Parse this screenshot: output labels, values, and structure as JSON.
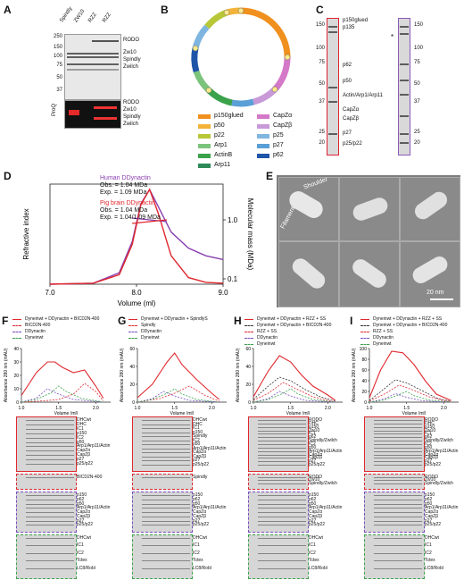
{
  "panels": {
    "A": {
      "letter": "A",
      "lanes": [
        "Spindly",
        "ZW10",
        "RZZ",
        "RZZ"
      ],
      "lane_superscripts": [
        "S",
        "",
        "",
        " "
      ],
      "markers": [
        "250",
        "150",
        "100",
        "75",
        "50",
        "37"
      ],
      "bands_right": [
        "RODO",
        "Zw10",
        "Spindly",
        "Zwilch"
      ],
      "prod_label": "ProQ",
      "bands_right_low": [
        "RODO",
        "Zw10",
        "Spindly",
        "Zwilch"
      ]
    },
    "B": {
      "letter": "B",
      "legend": [
        {
          "label": "p150glued",
          "color": "#f0901e"
        },
        {
          "label": "CapZα",
          "color": "#d478c8"
        },
        {
          "label": "p50",
          "color": "#f2b338"
        },
        {
          "label": "CapZβ",
          "color": "#c89ad8"
        },
        {
          "label": "p22",
          "color": "#b8c738"
        },
        {
          "label": "p25",
          "color": "#7fb6e0"
        },
        {
          "label": "Arp1",
          "color": "#7cc47c"
        },
        {
          "label": "p27",
          "color": "#5a9fd6"
        },
        {
          "label": "ActinB",
          "color": "#3aa24a"
        },
        {
          "label": "p62",
          "color": "#1f55a8"
        },
        {
          "label": "Arp11",
          "color": "#2f8a5a"
        }
      ]
    },
    "C": {
      "letter": "C",
      "markers_left": [
        "150",
        "100",
        "75",
        "50",
        "37",
        "25",
        "20"
      ],
      "markers_right": [
        "150",
        "100",
        "75",
        "50",
        "37",
        "25",
        "20"
      ],
      "bands": [
        "p150glued",
        "p135",
        "p62",
        "p50",
        "Actin/Arp1/Arp11",
        "CapZα",
        "CapZβ",
        "p27",
        "p25/p22"
      ],
      "star": "*"
    },
    "D": {
      "letter": "D",
      "human_title": "Human DDynactin",
      "human_obs": "Obs. = 1.04 MDa",
      "human_exp": "Exp. = 1.09 MDa",
      "pig_title": "Pig brain DDynactin",
      "pig_obs": "Obs. = 1.04 MDa",
      "pig_exp": "Exp. = 1.04/1.09 MDa",
      "ylabel": "Refractive index",
      "y2label": "Molecular mass (MDa)",
      "xlabel": "Volume (ml)",
      "xticks": [
        "7.0",
        "8.0",
        "9.0"
      ],
      "y2ticks": [
        "1.0",
        "0.1"
      ]
    },
    "E": {
      "letter": "E",
      "shoulder": "Shoulder",
      "filament": "Filament",
      "scale": "20 nm"
    },
    "F": {
      "letter": "F",
      "legend": [
        "Dyneinwt + DDynactin + BICD2N-400",
        "BICD2N-400",
        "DDynactin",
        "Dyneinwt"
      ],
      "ylabel": "Absorbance 280 nm (mAU)",
      "xlabel": "Volume (ml)",
      "yticks": [
        "40",
        "30",
        "20",
        "10",
        "0"
      ],
      "xticks": [
        "1.0",
        "1.5",
        "2.0"
      ],
      "gel_top": [
        "DHCwt",
        "DHC",
        "IC1",
        "p150",
        "IC2",
        "p50",
        "Arp1/Arp11/Actin",
        "CapZα",
        "CapZβ",
        "p27",
        "p25/p22"
      ],
      "gel_mid": [
        "BICD2N-400"
      ],
      "gel_low": [
        "p150",
        "p62",
        "p50",
        "Arp1/Arp11/Actin",
        "CapZα",
        "CapZβ",
        "p27",
        "p25/p22"
      ],
      "gel_bot": [
        "DHCwt",
        "IC1",
        "IC2",
        "Tctex",
        "LC8/Robl"
      ]
    },
    "G": {
      "letter": "G",
      "legend": [
        "Dyneinwt + DDynactin + SpindlyS",
        "Spindly",
        "DDynactin",
        "Dyneinwt"
      ],
      "ylabel": "Absorbance 280 nm (mAU)",
      "xlabel": "Volume (ml)",
      "yticks": [
        "60",
        "40",
        "20",
        "0"
      ],
      "xticks": [
        "1.0",
        "1.5",
        "2.0"
      ],
      "gel_top": [
        "DHCwt",
        "DHC",
        "IC1",
        "p150",
        "Spindly",
        "IC2",
        "p50",
        "Arp1/Arp11/Actin",
        "CapZα",
        "CapZβ",
        "p27",
        "p25/p22"
      ],
      "gel_mid": [
        "Spindly"
      ],
      "gel_low": [
        "p150",
        "p62",
        "p50",
        "Arp1/Arp11/Actin",
        "CapZα",
        "CapZβ",
        "p27",
        "p25/p22"
      ],
      "gel_bot": [
        "DHCwt",
        "IC1",
        "IC2",
        "Tctex",
        "LC8/Robl"
      ]
    },
    "H": {
      "letter": "H",
      "legend": [
        "Dyneinwt + DDynactin + RZZ + SS",
        "Dyneinwt + DDynactin + BICD2N-400",
        "RZZ + SS",
        "DDynactin",
        "Dyneinwt"
      ],
      "ylabel": "Absorbance 280 nm (mAU)",
      "xlabel": "Volume (ml)",
      "yticks": [
        "60",
        "40",
        "20",
        "0"
      ],
      "xticks": [
        "1.0",
        "1.5",
        "2.0"
      ],
      "gel_top": [
        "RODO",
        "DHC",
        "p150",
        "Zw10",
        "IC1",
        "p62",
        "Spindly/Zwilch",
        "IC2",
        "p50",
        "Arp1/Arp11/Actin",
        "CapZα",
        "CapZβ",
        "p27",
        "p25/p22"
      ],
      "gel_mid": [
        "RODO",
        "Zw10",
        "Spindly/Zwilch"
      ],
      "gel_low": [
        "p150",
        "p62",
        "p50",
        "Arp1/Arp11/Actin",
        "CapZα",
        "CapZβ",
        "p27",
        "p25/p22"
      ],
      "gel_bot": [
        "DHCwt",
        "IC1",
        "IC2",
        "Tctex",
        "LC8/Robl"
      ]
    },
    "I": {
      "letter": "I",
      "legend": [
        "Dyneinwt + DDynactin + RZZ + SS",
        "Dyneinwt + DDynactin + BICD2N-400",
        "RZZ + SS",
        "DDynactin",
        "Dyneinwt"
      ],
      "ylabel": "Absorbance 280 nm (mAU)",
      "xlabel": "Volume (ml)",
      "yticks": [
        "100",
        "80",
        "60",
        "40",
        "20",
        "0"
      ],
      "xticks": [
        "1.0",
        "1.5",
        "2.0"
      ],
      "gel_top": [
        "RODO",
        "DHC",
        "p150",
        "Zw10",
        "IC1",
        "p62",
        "Spindly/Zwilch",
        "IC2",
        "p50",
        "Arp1/Arp11/Actin",
        "CapZα",
        "CapZβ",
        "p27",
        "p25/p22"
      ],
      "gel_mid": [
        "RODO",
        "Zw10",
        "Spindly/Zwilch"
      ],
      "gel_low": [
        "p150",
        "p62",
        "p50",
        "Arp1/Arp11/Actin",
        "CapZα",
        "CapZβ",
        "p27",
        "p25/p22"
      ],
      "gel_bot": [
        "DHCwt",
        "IC1",
        "IC2",
        "Tctex",
        "LC8/Robl"
      ]
    }
  },
  "chart_data": [
    {
      "type": "line",
      "panel": "D",
      "title": "",
      "xlabel": "Volume (ml)",
      "ylabel": "Refractive index",
      "xlim": [
        7.0,
        9.0
      ],
      "series": [
        {
          "name": "Human DDynactin",
          "color": "#8a3fb0",
          "x": [
            7.0,
            7.5,
            7.8,
            7.95,
            8.05,
            8.15,
            8.25,
            8.4,
            8.6,
            8.8,
            9.0
          ],
          "y": [
            0.0,
            0.01,
            0.12,
            0.45,
            0.85,
            1.0,
            0.82,
            0.55,
            0.38,
            0.3,
            0.26
          ]
        },
        {
          "name": "Pig brain DDynactin",
          "color": "#e0282e",
          "x": [
            7.0,
            7.5,
            7.8,
            7.95,
            8.05,
            8.15,
            8.25,
            8.4,
            8.6,
            8.8,
            9.0
          ],
          "y": [
            0.0,
            0.01,
            0.1,
            0.42,
            0.84,
            1.0,
            0.75,
            0.3,
            0.07,
            0.02,
            0.01
          ]
        }
      ]
    },
    {
      "type": "line",
      "panel": "F",
      "xlim": [
        1.0,
        2.2
      ],
      "ylim": [
        0,
        40
      ],
      "series": [
        {
          "name": "Dyneinwt + DDynactin + BICD2N-400",
          "color": "#e0282e",
          "x": [
            1.0,
            1.2,
            1.35,
            1.45,
            1.55,
            1.7,
            1.85,
            2.0,
            2.1
          ],
          "y": [
            5,
            22,
            30,
            30,
            26,
            22,
            24,
            12,
            3
          ]
        },
        {
          "name": "BICD2N-400",
          "color": "#e0282e",
          "x": [
            1.0,
            1.3,
            1.5,
            1.7,
            1.85,
            2.0,
            2.1
          ],
          "y": [
            0,
            1,
            2,
            6,
            14,
            8,
            1
          ]
        },
        {
          "name": "DDynactin",
          "color": "#7a4fc0",
          "x": [
            1.0,
            1.2,
            1.35,
            1.5,
            1.7,
            1.9,
            2.1
          ],
          "y": [
            0,
            3,
            10,
            6,
            2,
            1,
            0
          ]
        },
        {
          "name": "Dyneinwt",
          "color": "#3aa24a",
          "x": [
            1.0,
            1.2,
            1.4,
            1.5,
            1.6,
            1.8,
            2.1
          ],
          "y": [
            0,
            2,
            7,
            12,
            8,
            3,
            0
          ]
        }
      ]
    },
    {
      "type": "line",
      "panel": "G",
      "xlim": [
        1.0,
        2.2
      ],
      "ylim": [
        0,
        60
      ],
      "series": [
        {
          "name": "Dyneinwt + DDynactin + SpindlyS",
          "color": "#e0282e",
          "x": [
            1.0,
            1.2,
            1.4,
            1.5,
            1.6,
            1.8,
            2.0,
            2.1
          ],
          "y": [
            5,
            20,
            45,
            55,
            42,
            25,
            10,
            3
          ]
        },
        {
          "name": "Spindly",
          "color": "#e0282e",
          "x": [
            1.0,
            1.3,
            1.5,
            1.7,
            1.9,
            2.1
          ],
          "y": [
            0,
            4,
            10,
            18,
            8,
            1
          ]
        },
        {
          "name": "DDynactin",
          "color": "#7a4fc0",
          "x": [
            1.0,
            1.2,
            1.35,
            1.5,
            1.7,
            1.9,
            2.1
          ],
          "y": [
            0,
            4,
            12,
            7,
            2,
            1,
            0
          ]
        },
        {
          "name": "Dyneinwt",
          "color": "#3aa24a",
          "x": [
            1.0,
            1.2,
            1.4,
            1.5,
            1.6,
            1.8,
            2.1
          ],
          "y": [
            0,
            3,
            10,
            15,
            9,
            3,
            0
          ]
        }
      ]
    },
    {
      "type": "line",
      "panel": "H",
      "xlim": [
        1.0,
        2.2
      ],
      "ylim": [
        0,
        60
      ],
      "series": [
        {
          "name": "Dyneinwt + DDynactin + RZZ + SS",
          "color": "#e0282e",
          "x": [
            1.0,
            1.2,
            1.35,
            1.5,
            1.65,
            1.8,
            2.0,
            2.1
          ],
          "y": [
            6,
            35,
            52,
            45,
            30,
            18,
            8,
            2
          ]
        },
        {
          "name": "Dyneinwt + DDynactin + BICD2N-400",
          "color": "#333333",
          "x": [
            1.0,
            1.2,
            1.35,
            1.5,
            1.7,
            1.9,
            2.1
          ],
          "y": [
            3,
            18,
            28,
            24,
            14,
            6,
            1
          ]
        },
        {
          "name": "RZZ + SS",
          "color": "#e0282e",
          "x": [
            1.0,
            1.2,
            1.4,
            1.6,
            1.8,
            2.0,
            2.1
          ],
          "y": [
            2,
            10,
            22,
            14,
            6,
            2,
            0
          ]
        },
        {
          "name": "DDynactin",
          "color": "#7a4fc0",
          "x": [
            1.0,
            1.2,
            1.35,
            1.5,
            1.7,
            1.9,
            2.1
          ],
          "y": [
            0,
            4,
            12,
            7,
            2,
            1,
            0
          ]
        },
        {
          "name": "Dyneinwt",
          "color": "#3aa24a",
          "x": [
            1.0,
            1.2,
            1.4,
            1.5,
            1.6,
            1.8,
            2.1
          ],
          "y": [
            0,
            3,
            10,
            15,
            9,
            3,
            0
          ]
        }
      ]
    },
    {
      "type": "line",
      "panel": "I",
      "xlim": [
        1.0,
        2.2
      ],
      "ylim": [
        0,
        100
      ],
      "series": [
        {
          "name": "Dyneinwt + DDynactin + RZZ + SS",
          "color": "#e0282e",
          "x": [
            1.0,
            1.15,
            1.3,
            1.45,
            1.6,
            1.75,
            1.9,
            2.1
          ],
          "y": [
            8,
            60,
            95,
            92,
            70,
            40,
            15,
            3
          ]
        },
        {
          "name": "Dyneinwt + DDynactin + BICD2N-400",
          "color": "#333333",
          "x": [
            1.0,
            1.2,
            1.35,
            1.5,
            1.7,
            1.9,
            2.1
          ],
          "y": [
            3,
            25,
            42,
            36,
            22,
            8,
            1
          ]
        },
        {
          "name": "RZZ + SS",
          "color": "#e0282e",
          "x": [
            1.0,
            1.2,
            1.4,
            1.6,
            1.8,
            2.0,
            2.1
          ],
          "y": [
            2,
            15,
            32,
            22,
            10,
            3,
            0
          ]
        },
        {
          "name": "DDynactin",
          "color": "#7a4fc0",
          "x": [
            1.0,
            1.2,
            1.35,
            1.5,
            1.7,
            1.9,
            2.1
          ],
          "y": [
            0,
            6,
            16,
            9,
            3,
            1,
            0
          ]
        },
        {
          "name": "Dyneinwt",
          "color": "#3aa24a",
          "x": [
            1.0,
            1.2,
            1.4,
            1.5,
            1.6,
            1.8,
            2.1
          ],
          "y": [
            0,
            4,
            14,
            20,
            12,
            4,
            0
          ]
        }
      ]
    }
  ]
}
